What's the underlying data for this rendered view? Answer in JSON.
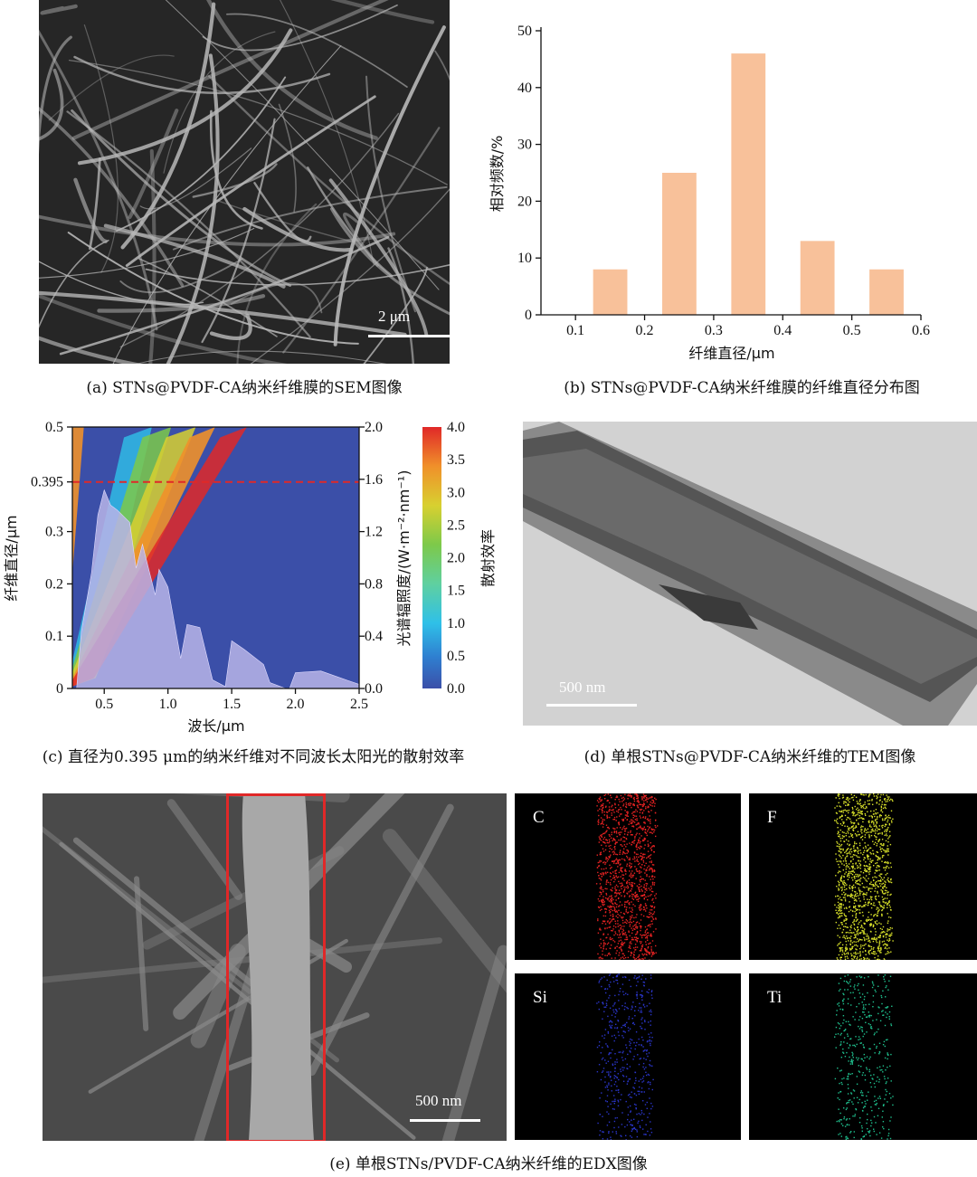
{
  "panel_a": {
    "scale_bar": "2 μm",
    "caption": "(a) STNs@PVDF-CA纳米纤维膜的SEM图像"
  },
  "panel_b": {
    "caption": "(b) STNs@PVDF-CA纳米纤维膜的纤维直径分布图",
    "bar_color": "#f8c19a"
  },
  "panel_c": {
    "caption": "(c) 直径为0.395 μm的纳米纤维对不同波长太阳光的散射效率",
    "marker_label": "0.395",
    "colorbar_title": "散射效率",
    "colorbar_ticks": [
      "4.0",
      "3.5",
      "3.0",
      "2.5",
      "2.0",
      "1.5",
      "1.0",
      "0.5",
      "0.0"
    ]
  },
  "panel_d": {
    "scale_bar": "500 nm",
    "caption": "(d) 单根STNs@PVDF-CA纳米纤维的TEM图像"
  },
  "panel_e": {
    "scale_bar": "500 nm",
    "caption": "(e) 单根STNs/PVDF-CA纳米纤维的EDX图像",
    "maps": [
      {
        "element": "C",
        "color": "#e52222"
      },
      {
        "element": "F",
        "color": "#d8e02a"
      },
      {
        "element": "Si",
        "color": "#2a35c8"
      },
      {
        "element": "Ti",
        "color": "#1fc08e"
      }
    ]
  },
  "chart_data": [
    {
      "type": "bar",
      "title": "",
      "xlabel": "纤维直径/μm",
      "ylabel": "相对频数/%",
      "x_ticks": [
        "0.1",
        "0.2",
        "0.3",
        "0.4",
        "0.5",
        "0.6"
      ],
      "y_ticks": [
        "0",
        "10",
        "20",
        "30",
        "40",
        "50"
      ],
      "xlim": [
        0.05,
        0.6
      ],
      "ylim": [
        0,
        50
      ],
      "bins": [
        {
          "center": 0.15,
          "value": 8
        },
        {
          "center": 0.25,
          "value": 25
        },
        {
          "center": 0.35,
          "value": 46
        },
        {
          "center": 0.45,
          "value": 13
        },
        {
          "center": 0.55,
          "value": 8
        }
      ]
    },
    {
      "type": "heatmap",
      "title": "",
      "xlabel": "波长/μm",
      "ylabel": "纤维直径/μm",
      "y2label": "光谱辐照度/(W·m⁻²·nm⁻¹)",
      "x_ticks": [
        "0.5",
        "1.0",
        "1.5",
        "2.0",
        "2.5"
      ],
      "y_ticks": [
        "0",
        "0.1",
        "0.2",
        "0.3",
        "0.395",
        "0.5"
      ],
      "y2_ticks": [
        "0.0",
        "0.4",
        "0.8",
        "1.2",
        "1.6",
        "2.0"
      ],
      "xlim": [
        0.25,
        2.5
      ],
      "ylim": [
        0,
        0.5
      ],
      "y2lim": [
        0,
        2.0
      ],
      "colorbar_range": [
        0,
        4.0
      ],
      "marker_line_y": 0.395
    }
  ]
}
